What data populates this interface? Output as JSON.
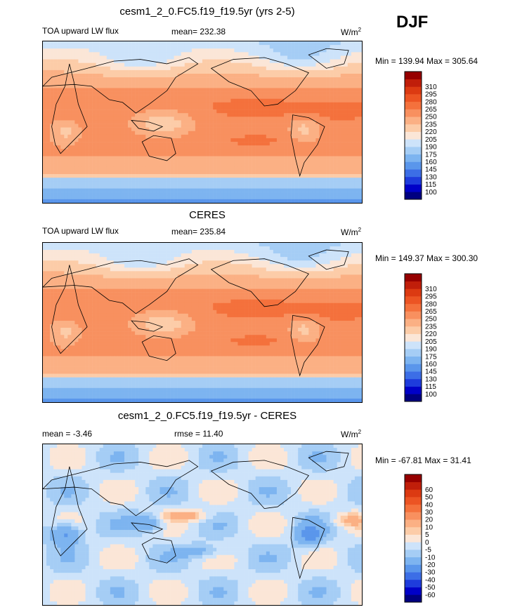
{
  "season": "DJF",
  "colors": [
    "#000080",
    "#0000c8",
    "#1e3cdc",
    "#3c6ee6",
    "#5a96eb",
    "#7db4f0",
    "#a5cdf5",
    "#cde3fa",
    "#fbe6d7",
    "#fccca8",
    "#fbb084",
    "#f8905f",
    "#f4713c",
    "#ec5423",
    "#dc3a12",
    "#c01e0a",
    "#960000"
  ],
  "panels": [
    {
      "title": "cesm1_2_0.FC5.f19_f19.5yr (yrs 2-5)",
      "left_label": "TOA upward LW flux",
      "center_label": "mean= 232.38",
      "units": "W/m",
      "units_sup": "2",
      "minmax": "Min = 139.94 Max = 305.64",
      "levels": [
        "100",
        "115",
        "130",
        "145",
        "160",
        "175",
        "190",
        "205",
        "220",
        "235",
        "250",
        "265",
        "280",
        "295",
        "310"
      ]
    },
    {
      "title": "CERES",
      "left_label": "TOA upward LW flux",
      "center_label": "mean= 235.84",
      "units": "W/m",
      "units_sup": "2",
      "minmax": "Min = 149.37 Max = 300.30",
      "levels": [
        "100",
        "115",
        "130",
        "145",
        "160",
        "175",
        "190",
        "205",
        "220",
        "235",
        "250",
        "265",
        "280",
        "295",
        "310"
      ]
    },
    {
      "title": "cesm1_2_0.FC5.f19_f19.5yr - CERES",
      "left_label": "mean =  -3.46",
      "center_label": "rmse =  11.40",
      "units": "W/m",
      "units_sup": "2",
      "minmax": "Min = -67.81 Max =  31.41",
      "levels": [
        "-60",
        "-50",
        "-40",
        "-30",
        "-20",
        "-10",
        "-5",
        "0",
        "5",
        "10",
        "20",
        "30",
        "40",
        "50",
        "60"
      ]
    }
  ],
  "chart_data": [
    {
      "type": "heatmap",
      "title": "cesm1_2_0.FC5.f19_f19.5yr (yrs 2-5)",
      "variable": "TOA upward LW flux",
      "units": "W/m2",
      "mean": 232.38,
      "min": 139.94,
      "max": 305.64,
      "contour_levels": [
        100,
        115,
        130,
        145,
        160,
        175,
        190,
        205,
        220,
        235,
        250,
        265,
        280,
        295,
        310
      ],
      "mode": "field"
    },
    {
      "type": "heatmap",
      "title": "CERES",
      "variable": "TOA upward LW flux",
      "units": "W/m2",
      "mean": 235.84,
      "min": 149.37,
      "max": 300.3,
      "contour_levels": [
        100,
        115,
        130,
        145,
        160,
        175,
        190,
        205,
        220,
        235,
        250,
        265,
        280,
        295,
        310
      ],
      "mode": "field"
    },
    {
      "type": "heatmap",
      "title": "cesm1_2_0.FC5.f19_f19.5yr - CERES",
      "variable": "difference",
      "units": "W/m2",
      "mean": -3.46,
      "rmse": 11.4,
      "min": -67.81,
      "max": 31.41,
      "contour_levels": [
        -60,
        -50,
        -40,
        -30,
        -20,
        -10,
        -5,
        0,
        5,
        10,
        20,
        30,
        40,
        50,
        60
      ],
      "mode": "diff"
    }
  ]
}
